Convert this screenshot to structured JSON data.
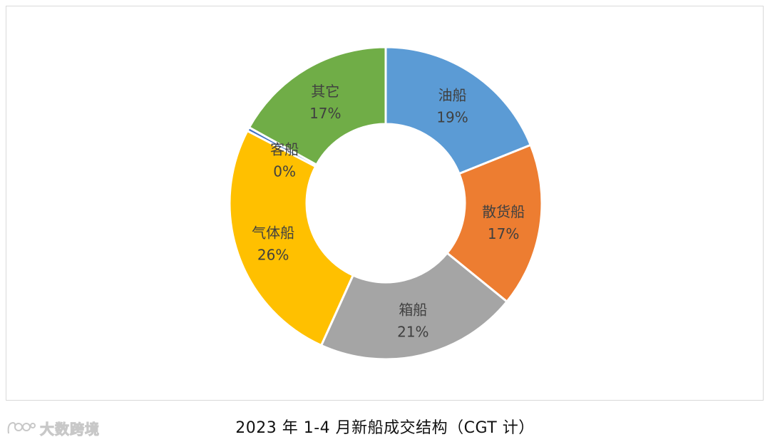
{
  "chart_data": {
    "type": "donut",
    "slices": [
      {
        "name": "油船",
        "value": 19,
        "label_pct": "19%",
        "color": "#5b9bd5"
      },
      {
        "name": "散货船",
        "value": 17,
        "label_pct": "17%",
        "color": "#ed7d31"
      },
      {
        "name": "箱船",
        "value": 21,
        "label_pct": "21%",
        "color": "#a5a5a5"
      },
      {
        "name": "气体船",
        "value": 26,
        "label_pct": "26%",
        "color": "#ffc000"
      },
      {
        "name": "客船",
        "value": 0.4,
        "label_pct": "0%",
        "color": "#4472c4"
      },
      {
        "name": "其它",
        "value": 17,
        "label_pct": "17%",
        "color": "#70ad47"
      }
    ],
    "title": "2023 年 1-4 月新船成交结构（CGT 计）",
    "start_angle": "12 o'clock",
    "direction": "clockwise"
  },
  "watermark": {
    "text": "大数跨境"
  }
}
